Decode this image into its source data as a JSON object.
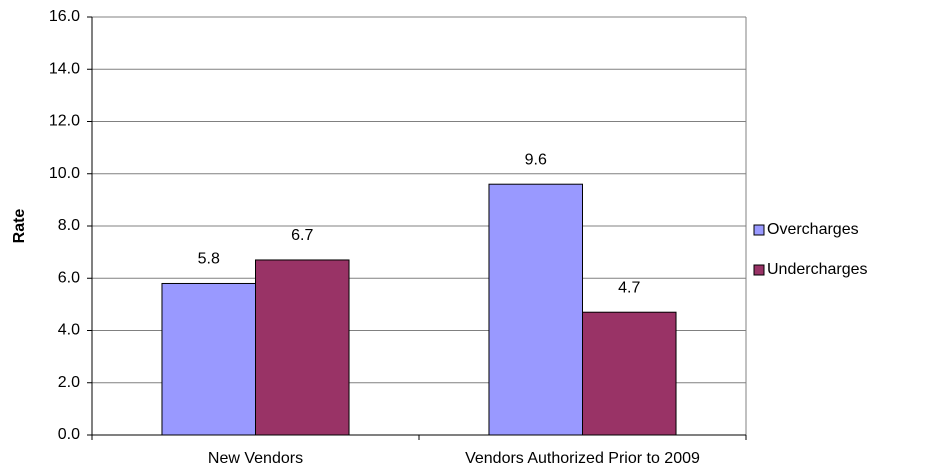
{
  "chart_data": {
    "type": "bar",
    "y_label": "Rate",
    "categories": [
      "New Vendors",
      "Vendors Authorized Prior to 2009"
    ],
    "series": [
      {
        "name": "Overcharges",
        "color": "#9999ff",
        "values": [
          5.8,
          9.6
        ]
      },
      {
        "name": "Undercharges",
        "color": "#993366",
        "values": [
          6.7,
          4.7
        ]
      }
    ],
    "ylim": [
      0,
      16
    ],
    "yticks": [
      {
        "value": 0,
        "label": "0.0"
      },
      {
        "value": 2,
        "label": "2.0"
      },
      {
        "value": 4,
        "label": "4.0"
      },
      {
        "value": 6,
        "label": "6.0"
      },
      {
        "value": 8,
        "label": "8.0"
      },
      {
        "value": 10,
        "label": "10.0"
      },
      {
        "value": 12,
        "label": "12.0"
      },
      {
        "value": 14,
        "label": "14.0"
      },
      {
        "value": 16,
        "label": "16.0"
      }
    ],
    "grid": true,
    "legend": "right"
  }
}
